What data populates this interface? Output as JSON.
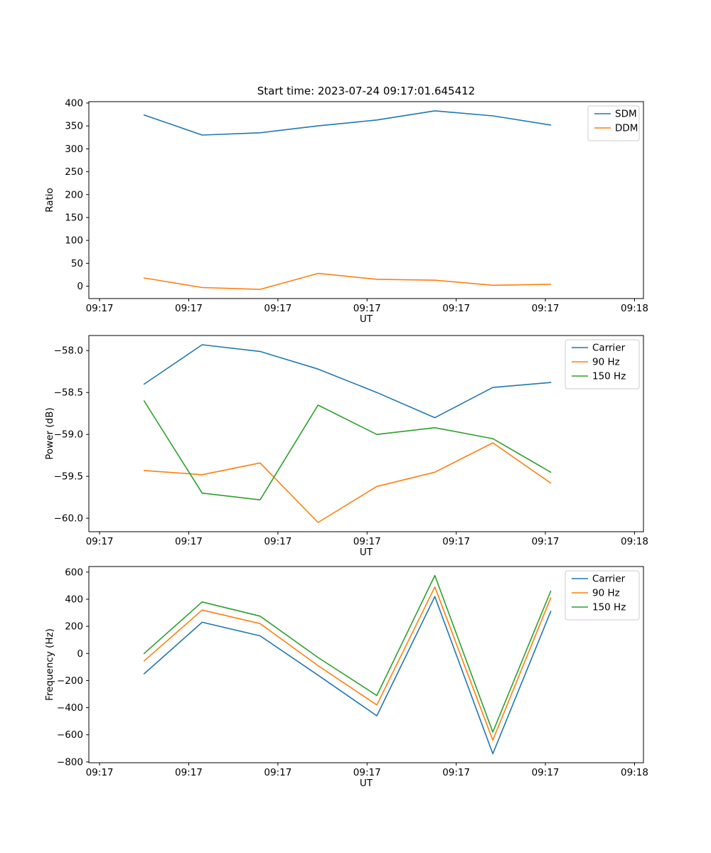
{
  "title": "Start time: 2023-07-24 09:17:01.645412",
  "palette": {
    "blue": "#1f77b4",
    "orange": "#ff7f0e",
    "green": "#2ca02c",
    "axis": "#000000",
    "legend_border": "#cccccc"
  },
  "chart_data": [
    {
      "type": "line",
      "xlabel": "UT",
      "ylabel": "Ratio",
      "xlim_seconds": [
        -1.2,
        61
      ],
      "xticks_seconds": [
        0,
        10,
        20,
        30,
        40,
        50,
        60
      ],
      "xticklabels": [
        "09:17",
        "09:17",
        "09:17",
        "09:17",
        "09:17",
        "09:17",
        "09:18"
      ],
      "ylim": [
        -27,
        403
      ],
      "yticks": [
        0,
        50,
        100,
        150,
        200,
        250,
        300,
        350,
        400
      ],
      "ytick_labels": [
        "0",
        "50",
        "100",
        "150",
        "200",
        "250",
        "300",
        "350",
        "400"
      ],
      "x_seconds": [
        5,
        11.5,
        18,
        24.5,
        31.1,
        37.6,
        44.1,
        50.6
      ],
      "grid": false,
      "legend_position": "upper right",
      "series": [
        {
          "name": "SDM",
          "color": "#1f77b4",
          "values": [
            374,
            330,
            335,
            350,
            363,
            383,
            372,
            352
          ]
        },
        {
          "name": "DDM",
          "color": "#ff7f0e",
          "values": [
            18,
            -3,
            -7,
            28,
            15,
            13,
            2,
            4
          ]
        }
      ]
    },
    {
      "type": "line",
      "xlabel": "UT",
      "ylabel": "Power (dB)",
      "xlim_seconds": [
        -1.2,
        61
      ],
      "xticks_seconds": [
        0,
        10,
        20,
        30,
        40,
        50,
        60
      ],
      "xticklabels": [
        "09:17",
        "09:17",
        "09:17",
        "09:17",
        "09:17",
        "09:17",
        "09:18"
      ],
      "ylim": [
        -60.16,
        -57.82
      ],
      "yticks": [
        -58.0,
        -58.5,
        -59.0,
        -59.5,
        -60.0
      ],
      "ytick_labels": [
        "−58.0",
        "−58.5",
        "−59.0",
        "−59.5",
        "−60.0"
      ],
      "x_seconds": [
        5,
        11.5,
        18,
        24.5,
        31.1,
        37.6,
        44.1,
        50.6
      ],
      "grid": false,
      "legend_position": "upper right",
      "series": [
        {
          "name": "Carrier",
          "color": "#1f77b4",
          "values": [
            -58.4,
            -57.93,
            -58.01,
            -58.22,
            -58.5,
            -58.8,
            -58.44,
            -58.38
          ]
        },
        {
          "name": "90 Hz",
          "color": "#ff7f0e",
          "values": [
            -59.43,
            -59.48,
            -59.34,
            -60.05,
            -59.62,
            -59.45,
            -59.1,
            -59.58
          ]
        },
        {
          "name": "150 Hz",
          "color": "#2ca02c",
          "values": [
            -58.6,
            -59.7,
            -59.78,
            -58.65,
            -59.0,
            -58.92,
            -59.05,
            -59.45
          ]
        }
      ]
    },
    {
      "type": "line",
      "xlabel": "UT",
      "ylabel": "Frequency (Hz)",
      "xlim_seconds": [
        -1.2,
        61
      ],
      "xticks_seconds": [
        0,
        10,
        20,
        30,
        40,
        50,
        60
      ],
      "xticklabels": [
        "09:17",
        "09:17",
        "09:17",
        "09:17",
        "09:17",
        "09:17",
        "09:18"
      ],
      "ylim": [
        -806,
        641
      ],
      "yticks": [
        -800,
        -600,
        -400,
        -200,
        0,
        200,
        400,
        600
      ],
      "ytick_labels": [
        "−800",
        "−600",
        "−400",
        "−200",
        "0",
        "200",
        "400",
        "600"
      ],
      "x_seconds": [
        5,
        11.5,
        18,
        24.5,
        31.1,
        37.6,
        44.1,
        50.6
      ],
      "grid": false,
      "legend_position": "upper right",
      "series": [
        {
          "name": "Carrier",
          "color": "#1f77b4",
          "values": [
            -150,
            230,
            130,
            -160,
            -460,
            420,
            -740,
            310
          ]
        },
        {
          "name": "90 Hz",
          "color": "#ff7f0e",
          "values": [
            -55,
            320,
            220,
            -90,
            -380,
            490,
            -640,
            410
          ]
        },
        {
          "name": "150 Hz",
          "color": "#2ca02c",
          "values": [
            0,
            380,
            275,
            -30,
            -310,
            575,
            -580,
            460
          ]
        }
      ]
    }
  ]
}
